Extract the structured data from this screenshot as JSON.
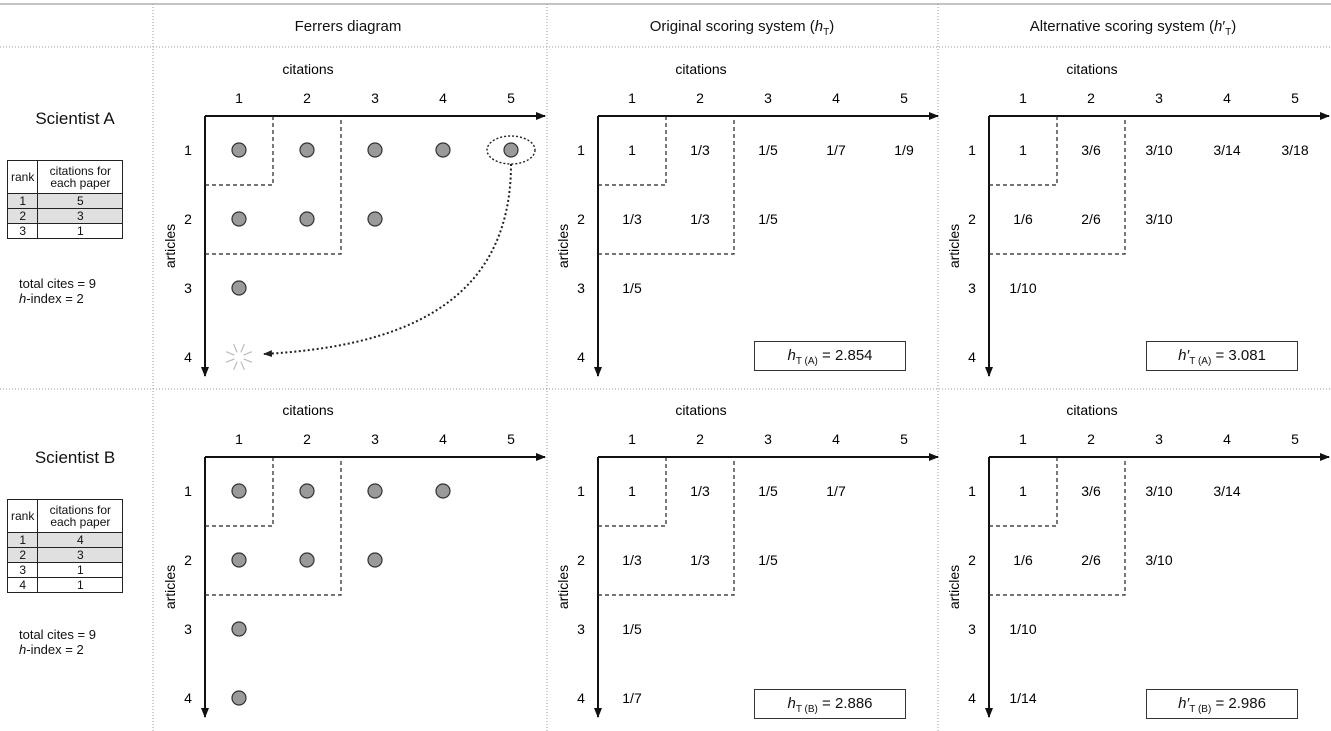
{
  "columns": [
    "Ferrers diagram",
    "Original scoring system",
    "Alternative scoring system"
  ],
  "column_symbols": [
    "",
    "hT",
    "h′T"
  ],
  "axis_labels": {
    "x": "citations",
    "y": "articles"
  },
  "citation_ticks": [
    "1",
    "2",
    "3",
    "4",
    "5"
  ],
  "table_headers": {
    "rank": "rank",
    "citations": "citations for each paper"
  },
  "scientists": [
    {
      "name": "Scientist A",
      "rank_table": [
        {
          "rank": "1",
          "citations": "5"
        },
        {
          "rank": "2",
          "citations": "3"
        },
        {
          "rank": "3",
          "citations": "1"
        }
      ],
      "highlight_rows": 2,
      "total_cites": "total cites = 9",
      "h_index": "-index = 2",
      "article_ticks": [
        "1",
        "2",
        "3",
        "4"
      ],
      "ferrers": [
        5,
        3,
        1
      ],
      "h_index_value": 2,
      "move_arrow": {
        "from": [
          1,
          5
        ],
        "to": [
          4,
          1
        ]
      },
      "original_scores": [
        [
          "1",
          "1/3",
          "1/5",
          "1/7",
          "1/9"
        ],
        [
          "1/3",
          "1/3",
          "1/5"
        ],
        [
          "1/5"
        ]
      ],
      "alternative_scores": [
        [
          "1",
          "3/6",
          "3/10",
          "3/14",
          "3/18"
        ],
        [
          "1/6",
          "2/6",
          "3/10"
        ],
        [
          "1/10"
        ]
      ],
      "original_result": {
        "symbol": "h",
        "subscript": "T (A)",
        "value": "= 2.854"
      },
      "alternative_result": {
        "symbol": "h′",
        "subscript": "T (A)",
        "value": "= 3.081"
      }
    },
    {
      "name": "Scientist B",
      "rank_table": [
        {
          "rank": "1",
          "citations": "4"
        },
        {
          "rank": "2",
          "citations": "3"
        },
        {
          "rank": "3",
          "citations": "1"
        },
        {
          "rank": "4",
          "citations": "1"
        }
      ],
      "highlight_rows": 2,
      "total_cites": "total cites = 9",
      "h_index": "-index = 2",
      "article_ticks": [
        "1",
        "2",
        "3",
        "4"
      ],
      "ferrers": [
        4,
        3,
        1,
        1
      ],
      "h_index_value": 2,
      "original_scores": [
        [
          "1",
          "1/3",
          "1/5",
          "1/7"
        ],
        [
          "1/3",
          "1/3",
          "1/5"
        ],
        [
          "1/5"
        ],
        [
          "1/7"
        ]
      ],
      "alternative_scores": [
        [
          "1",
          "3/6",
          "3/10",
          "3/14"
        ],
        [
          "1/6",
          "2/6",
          "3/10"
        ],
        [
          "1/10"
        ],
        [
          "1/14"
        ]
      ],
      "original_result": {
        "symbol": "h",
        "subscript": "T (B)",
        "value": "= 2.886"
      },
      "alternative_result": {
        "symbol": "h′",
        "subscript": "T (B)",
        "value": "= 2.986"
      }
    }
  ]
}
